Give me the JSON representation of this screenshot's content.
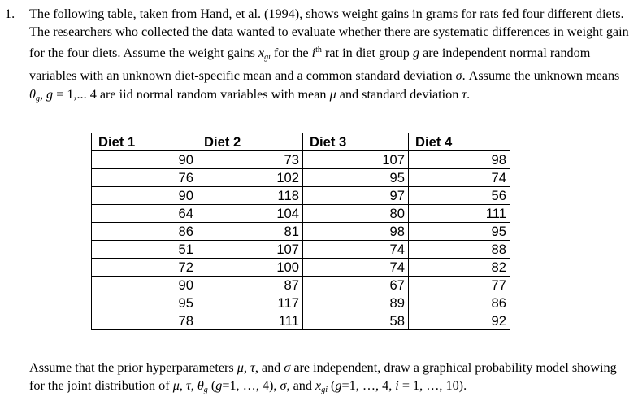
{
  "problem": {
    "number": "1.",
    "intro_part1": "The following table, taken from Hand, et al. (1994), shows weight gains in grams for rats fed four different diets. The researchers who collected the data wanted to evaluate whether there are systematic differences in weight gain for the four diets. Assume the weight gains ",
    "var_x": "x",
    "sub_gi": "gi",
    "intro_part2": " for the ",
    "var_i": "i",
    "sup_th": "th",
    "intro_part3": " rat in diet group ",
    "var_g": "g",
    "intro_part4": " are independent normal random variables with an unknown diet-specific mean and a common standard deviation ",
    "sym_sigma": "σ",
    "intro_part5": ". Assume the unknown means ",
    "sym_theta": "θ",
    "sub_g": "g",
    "intro_part6": ", ",
    "var_g2": "g",
    "intro_part7": " = 1,... 4 are iid normal random variables with mean ",
    "sym_mu": "μ",
    "intro_part8": " and standard deviation ",
    "sym_tau": "τ",
    "intro_part9": "."
  },
  "table": {
    "headers": [
      "Diet 1",
      "Diet 2",
      "Diet 3",
      "Diet 4"
    ],
    "rows": [
      [
        "90",
        "73",
        "107",
        "98"
      ],
      [
        "76",
        "102",
        "95",
        "74"
      ],
      [
        "90",
        "118",
        "97",
        "56"
      ],
      [
        "64",
        "104",
        "80",
        "111"
      ],
      [
        "86",
        "81",
        "98",
        "95"
      ],
      [
        "51",
        "107",
        "74",
        "88"
      ],
      [
        "72",
        "100",
        "74",
        "82"
      ],
      [
        "90",
        "87",
        "67",
        "77"
      ],
      [
        "95",
        "117",
        "89",
        "86"
      ],
      [
        "78",
        "111",
        "58",
        "92"
      ]
    ]
  },
  "closing": {
    "part1": "Assume that the prior hyperparameters ",
    "mu": "μ",
    "part2": ", ",
    "tau": "τ",
    "part3": ", and ",
    "sigma": "σ",
    "part4": " are independent, draw a graphical probability model showing for the joint distribution of ",
    "mu2": "μ",
    "part5": ", ",
    "tau2": "τ",
    "part6": ", ",
    "theta": "θ",
    "sub_g": "g",
    "part7": " (",
    "g1": "g",
    "part8": "=1, …, 4), ",
    "sigma2": "σ",
    "part9": ", and ",
    "x": "x",
    "sub_gi": "gi",
    "part10": " (",
    "g2": "g",
    "part11": "=1, …, 4, ",
    "i": "i",
    "part12": " = 1, …, 10)."
  }
}
